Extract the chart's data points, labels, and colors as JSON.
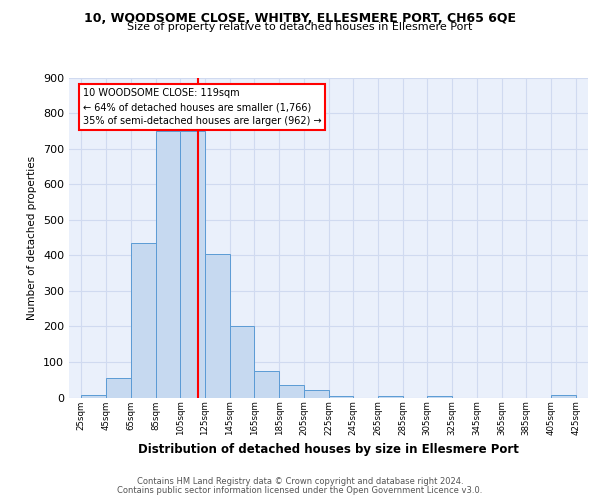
{
  "title1": "10, WOODSOME CLOSE, WHITBY, ELLESMERE PORT, CH65 6QE",
  "title2": "Size of property relative to detached houses in Ellesmere Port",
  "xlabel": "Distribution of detached houses by size in Ellesmere Port",
  "ylabel": "Number of detached properties",
  "bar_values": [
    8,
    55,
    435,
    750,
    750,
    405,
    200,
    75,
    35,
    20,
    5,
    0,
    5,
    0,
    5,
    0,
    0,
    0,
    0,
    8
  ],
  "bin_edges": [
    25,
    45,
    65,
    85,
    105,
    125,
    145,
    165,
    185,
    205,
    225,
    245,
    265,
    285,
    305,
    325,
    345,
    365,
    385,
    405,
    425
  ],
  "tick_labels": [
    "25sqm",
    "45sqm",
    "65sqm",
    "85sqm",
    "105sqm",
    "125sqm",
    "145sqm",
    "165sqm",
    "185sqm",
    "205sqm",
    "225sqm",
    "245sqm",
    "265sqm",
    "285sqm",
    "305sqm",
    "325sqm",
    "345sqm",
    "365sqm",
    "385sqm",
    "405sqm",
    "425sqm"
  ],
  "bar_color": "#c6d9f0",
  "bar_edge_color": "#5b9bd5",
  "bg_color": "#eaf0fb",
  "grid_color": "#d0daf0",
  "vline_x": 119,
  "vline_color": "red",
  "annotation_text": "10 WOODSOME CLOSE: 119sqm\n← 64% of detached houses are smaller (1,766)\n35% of semi-detached houses are larger (962) →",
  "footer_line1": "Contains HM Land Registry data © Crown copyright and database right 2024.",
  "footer_line2": "Contains public sector information licensed under the Open Government Licence v3.0.",
  "ylim": [
    0,
    900
  ],
  "yticks": [
    0,
    100,
    200,
    300,
    400,
    500,
    600,
    700,
    800,
    900
  ]
}
